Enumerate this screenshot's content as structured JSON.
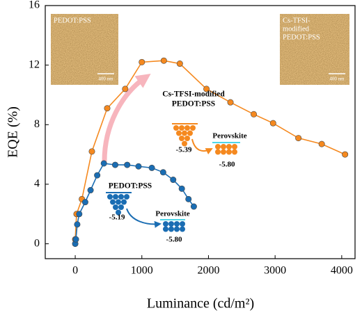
{
  "chart_data": {
    "type": "line",
    "x_label": "Luminance (cd/m²)",
    "y_label": "EQE (%)",
    "xlim": [
      -450,
      4200
    ],
    "ylim": [
      -1,
      16
    ],
    "xticks": [
      0,
      1000,
      2000,
      3000,
      4000
    ],
    "yticks": [
      0,
      4,
      8,
      12,
      16
    ],
    "series": [
      {
        "name": "Cs-TFSI-modified PEDOT:PSS",
        "color": "#f5891f",
        "x": [
          0,
          20,
          100,
          250,
          480,
          750,
          1000,
          1330,
          1570,
          1970,
          2330,
          2680,
          2970,
          3350,
          3700,
          4050
        ],
        "values": [
          0.3,
          2.0,
          3.0,
          6.2,
          9.1,
          10.4,
          12.2,
          12.3,
          12.1,
          10.4,
          9.5,
          8.7,
          8.1,
          7.1,
          6.7,
          6.0
        ]
      },
      {
        "name": "PEDOT:PSS",
        "color": "#1a6db3",
        "x": [
          0,
          10,
          30,
          60,
          150,
          230,
          330,
          430,
          600,
          780,
          950,
          1150,
          1320,
          1470,
          1600,
          1700,
          1780
        ],
        "values": [
          0,
          0.3,
          1.3,
          2.0,
          2.8,
          3.6,
          4.6,
          5.4,
          5.3,
          5.3,
          5.2,
          5.1,
          4.8,
          4.3,
          3.7,
          3.0,
          2.5
        ]
      }
    ],
    "insets": [
      {
        "label": [
          "PEDOT:PSS"
        ],
        "scale": "400 nm"
      },
      {
        "label": [
          "Cs-TFSI-",
          "modified",
          "PEDOT:PSS"
        ],
        "scale": "400 nm"
      }
    ],
    "diagrams": [
      {
        "label": [
          "Cs-TFSI-modified",
          "PEDOT:PSS"
        ],
        "level": "-5.39",
        "target": "Perovskite",
        "target_level": "-5.80"
      },
      {
        "label": [
          "PEDOT:PSS"
        ],
        "level": "-5.19",
        "target": "Perovskite",
        "target_level": "-5.80"
      }
    ]
  }
}
